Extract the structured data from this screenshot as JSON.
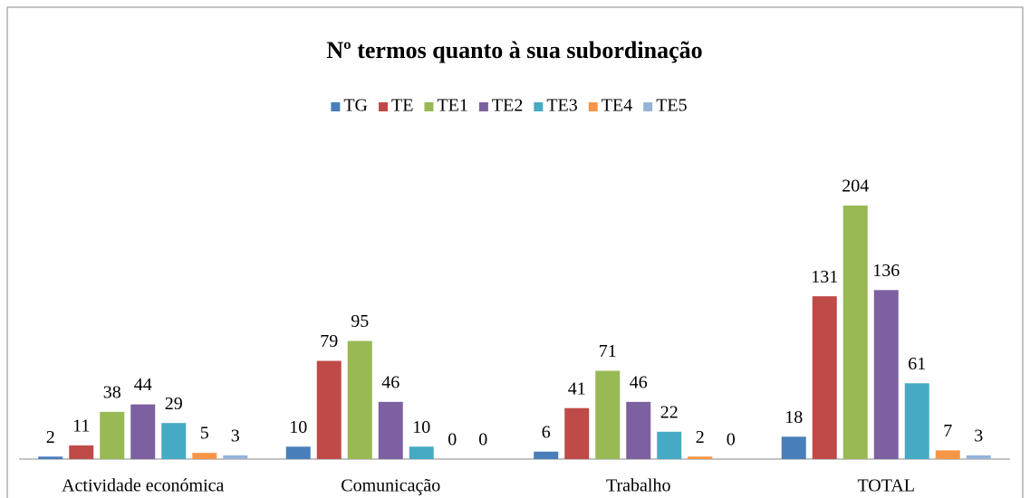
{
  "chart_data": {
    "type": "bar",
    "title": "Nº termos quanto à sua subordinação",
    "categories": [
      "Actividade económica",
      "Comunicação",
      "Trabalho",
      "TOTAL"
    ],
    "series": [
      {
        "name": "TG",
        "color": "#4a7ebb",
        "values": [
          2,
          10,
          6,
          18
        ]
      },
      {
        "name": "TE",
        "color": "#be4b48",
        "values": [
          11,
          79,
          41,
          131
        ]
      },
      {
        "name": "TE1",
        "color": "#98b954",
        "values": [
          38,
          95,
          71,
          204
        ]
      },
      {
        "name": "TE2",
        "color": "#7d60a0",
        "values": [
          44,
          46,
          46,
          136
        ]
      },
      {
        "name": "TE3",
        "color": "#46aac5",
        "values": [
          29,
          10,
          22,
          61
        ]
      },
      {
        "name": "TE4",
        "color": "#f79646",
        "values": [
          5,
          0,
          2,
          7
        ]
      },
      {
        "name": "TE5",
        "color": "#95b3d7",
        "values": [
          3,
          0,
          0,
          3
        ]
      }
    ],
    "legend": "top",
    "grid": false
  }
}
